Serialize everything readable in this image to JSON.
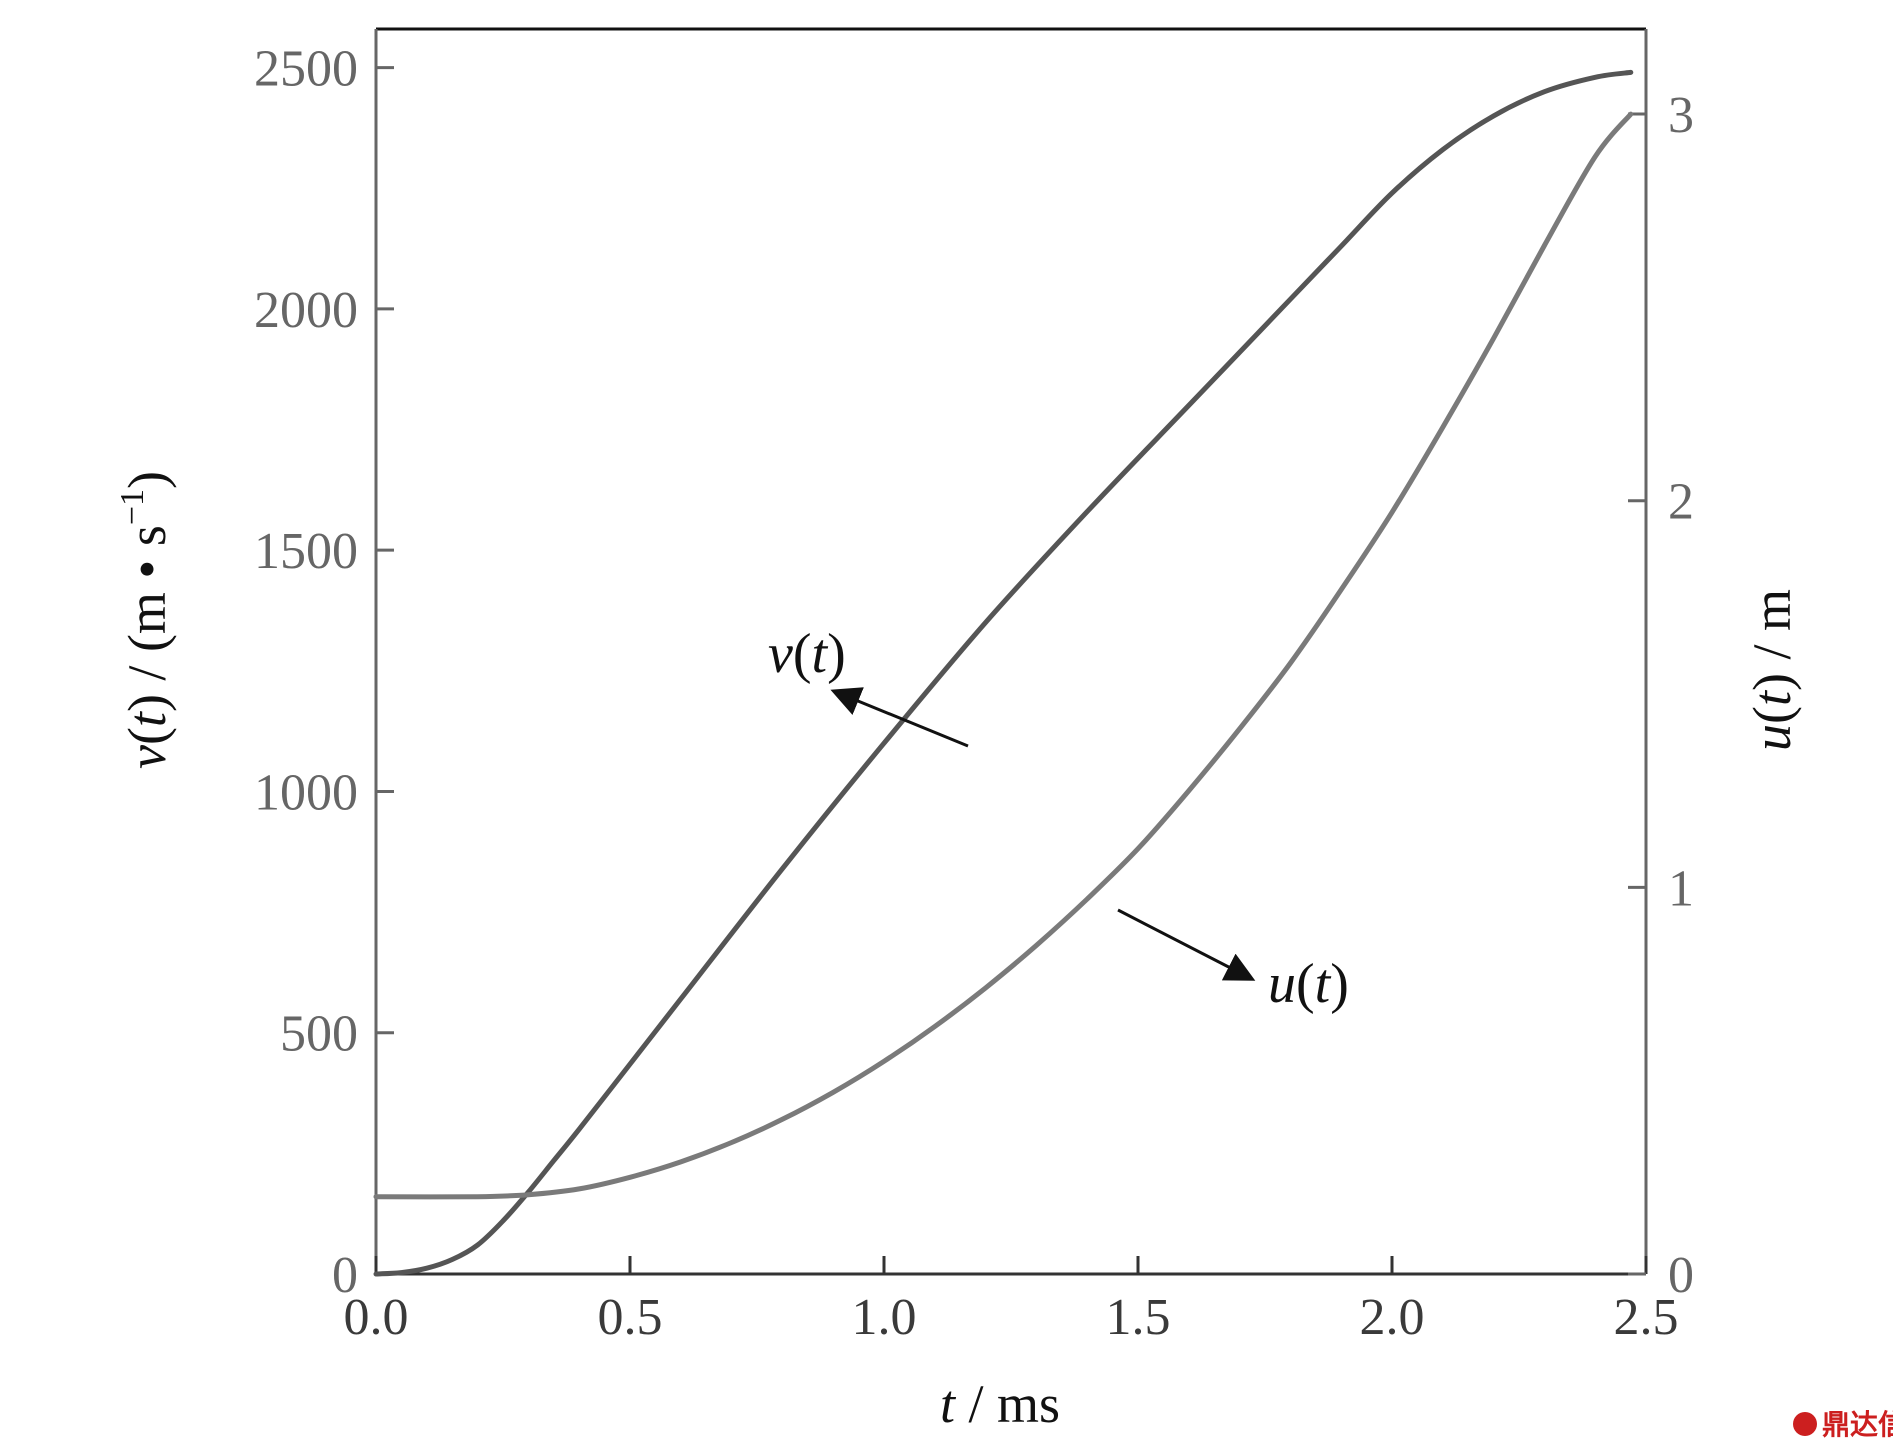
{
  "chart_data": {
    "type": "line",
    "x_axis": {
      "label_var": "t",
      "label_unit": " / ms",
      "range": [
        0.0,
        2.5
      ],
      "ticks": [
        0.0,
        0.5,
        1.0,
        1.5,
        2.0,
        2.5
      ],
      "tick_labels": [
        "0.0",
        "0.5",
        "1.0",
        "1.5",
        "2.0",
        "2.5"
      ]
    },
    "y_left": {
      "label_var": "v",
      "label_paren_var": "t",
      "label_unit_prefix": " / (m • s",
      "label_unit_exp": "−1",
      "label_unit_suffix": ")",
      "range": [
        0,
        2580
      ],
      "ticks": [
        0,
        500,
        1000,
        1500,
        2000,
        2500
      ],
      "tick_labels": [
        "0",
        "500",
        "1000",
        "1500",
        "2000",
        "2500"
      ]
    },
    "y_right": {
      "label_var": "u",
      "label_paren_var": "t",
      "label_unit": " / m",
      "range": [
        0,
        3.22
      ],
      "ticks": [
        0,
        1,
        2,
        3
      ],
      "tick_labels": [
        "0",
        "1",
        "2",
        "3"
      ]
    },
    "series": [
      {
        "name": "v(t)",
        "axis": "left",
        "color": "#555555",
        "x": [
          0.0,
          0.05,
          0.1,
          0.15,
          0.2,
          0.25,
          0.3,
          0.35,
          0.4,
          0.5,
          0.6,
          0.8,
          1.0,
          1.2,
          1.4,
          1.6,
          1.8,
          1.9,
          2.0,
          2.1,
          2.2,
          2.3,
          2.4,
          2.47
        ],
        "y": [
          0,
          3,
          12,
          30,
          60,
          110,
          170,
          235,
          300,
          435,
          570,
          840,
          1100,
          1350,
          1580,
          1800,
          2020,
          2130,
          2240,
          2330,
          2400,
          2450,
          2480,
          2490
        ]
      },
      {
        "name": "u(t)",
        "axis": "right",
        "color": "#7a7a7a",
        "x": [
          0.0,
          0.2,
          0.3,
          0.4,
          0.5,
          0.6,
          0.7,
          0.8,
          0.9,
          1.0,
          1.1,
          1.2,
          1.3,
          1.4,
          1.5,
          1.6,
          1.7,
          1.8,
          1.9,
          2.0,
          2.1,
          2.2,
          2.3,
          2.4,
          2.47
        ],
        "y": [
          0.2,
          0.2,
          0.205,
          0.22,
          0.25,
          0.29,
          0.34,
          0.4,
          0.47,
          0.55,
          0.64,
          0.74,
          0.85,
          0.97,
          1.1,
          1.25,
          1.41,
          1.58,
          1.77,
          1.97,
          2.19,
          2.42,
          2.66,
          2.89,
          3.0
        ]
      }
    ],
    "annotations": [
      {
        "var": "v",
        "paren_var": "t",
        "series": "v(t)"
      },
      {
        "var": "u",
        "paren_var": "t",
        "series": "u(t)"
      }
    ],
    "grid": false
  },
  "watermark": {
    "text": "鼎达信",
    "color": "#cc1f1f"
  }
}
